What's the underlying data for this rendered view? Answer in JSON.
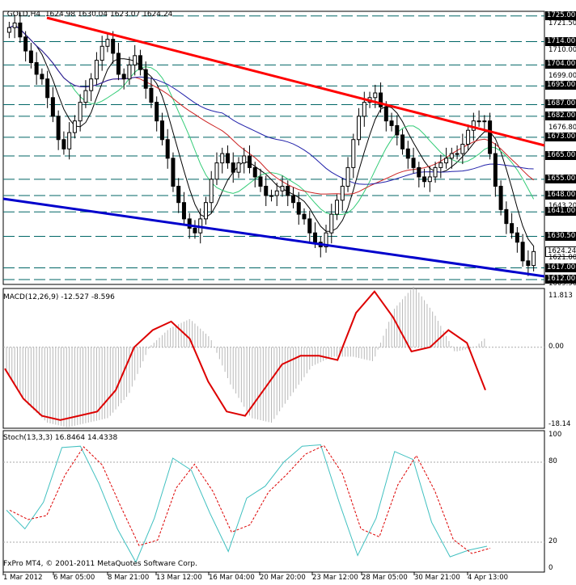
{
  "main": {
    "header": {
      "symbol": "GOLD,H4",
      "o": "1624.98",
      "h": "1630.04",
      "l": "1623.07",
      "c": "1624.24"
    },
    "price_labels": [
      "1725.00",
      "1721.50",
      "1714.00",
      "1710.00",
      "1704.00",
      "1699.00",
      "1695.00",
      "1687.00",
      "1682.00",
      "1676.80",
      "1673.00",
      "1665.00",
      "1655.00",
      "1648.00",
      "1643.20",
      "1641.00",
      "1630.50",
      "1624.24",
      "1621.00",
      "1617.00",
      "1612.00",
      "1609.90"
    ],
    "level_tags": [
      "1725.00",
      "1714.00",
      "1704.00",
      "1695.00",
      "1687.00",
      "1682.00",
      "1673.00",
      "1665.00",
      "1655.00",
      "1648.00",
      "1641.00",
      "1630.50",
      "1617.00",
      "1612.00"
    ],
    "current_price": "1624.24"
  },
  "macd": {
    "header": "MACD(12,26,9) -12.527 -8.596",
    "axis": [
      "11.813",
      "0.00",
      "-18.14"
    ]
  },
  "stoch": {
    "header": "Stoch(13,3,3) 16.8464 14.4338",
    "axis": [
      "100",
      "80",
      "20",
      "0"
    ]
  },
  "footer": {
    "copyright": "FxPro MT4, © 2001-2011 MetaQuotes Software Corp."
  },
  "time_labels": [
    "1 Mar 2012",
    "6 Mar 05:00",
    "8 Mar 21:00",
    "13 Mar 12:00",
    "16 Mar 04:00",
    "20 Mar 20:00",
    "23 Mar 12:00",
    "28 Mar 05:00",
    "30 Mar 21:00",
    "4 Apr 13:00"
  ],
  "colors": {
    "resistance": "#ff0000",
    "support": "#0000cc",
    "levels": "#006666",
    "macd_signal": "#dd0000",
    "stoch_main": "#40c0c0",
    "stoch_signal": "#dd0000"
  },
  "chart_data": [
    {
      "type": "candlestick",
      "title": "GOLD,H4",
      "ylim": [
        1609.9,
        1727
      ],
      "series": [
        {
          "name": "GOLD,H4",
          "close": [
            1720,
            1722,
            1716,
            1710,
            1705,
            1700,
            1698,
            1690,
            1682,
            1672,
            1668,
            1675,
            1680,
            1688,
            1693,
            1698,
            1706,
            1712,
            1715,
            1709,
            1700,
            1698,
            1704,
            1708,
            1702,
            1694,
            1688,
            1680,
            1672,
            1664,
            1652,
            1645,
            1638,
            1634,
            1632,
            1638,
            1645,
            1655,
            1662,
            1666,
            1662,
            1658,
            1662,
            1665,
            1660,
            1656,
            1652,
            1648,
            1648,
            1650,
            1652,
            1648,
            1645,
            1640,
            1638,
            1632,
            1628,
            1626,
            1632,
            1640,
            1646,
            1652,
            1660,
            1672,
            1682,
            1688,
            1690,
            1692,
            1686,
            1680,
            1678,
            1674,
            1668,
            1664,
            1660,
            1656,
            1654,
            1656,
            1660,
            1662,
            1664,
            1666,
            1666,
            1670,
            1676,
            1680,
            1680,
            1680,
            1666,
            1652,
            1642,
            1636,
            1632,
            1628,
            1620,
            1618,
            1624
          ]
        }
      ]
    },
    {
      "type": "line",
      "title": "MACD(12,26,9)",
      "ylim": [
        -18.14,
        11.813
      ],
      "series": [
        {
          "name": "signal",
          "values": [
            -5,
            -12,
            -16,
            -17,
            -16,
            -15,
            -10,
            0,
            4,
            6,
            2,
            -8,
            -15,
            -16,
            -10,
            -4,
            -2,
            -2,
            -3,
            8,
            13,
            7,
            -1,
            0,
            4,
            1,
            -10
          ]
        }
      ]
    },
    {
      "type": "line",
      "title": "Stoch(13,3,3)",
      "ylim": [
        0,
        100
      ],
      "series": [
        {
          "name": "main",
          "values": [
            44,
            30,
            50,
            91,
            92,
            64,
            30,
            5,
            38,
            83,
            74,
            42,
            13,
            53,
            62,
            80,
            92,
            93,
            50,
            10,
            38,
            88,
            82,
            35,
            9,
            14,
            17
          ]
        }
      ]
    }
  ]
}
